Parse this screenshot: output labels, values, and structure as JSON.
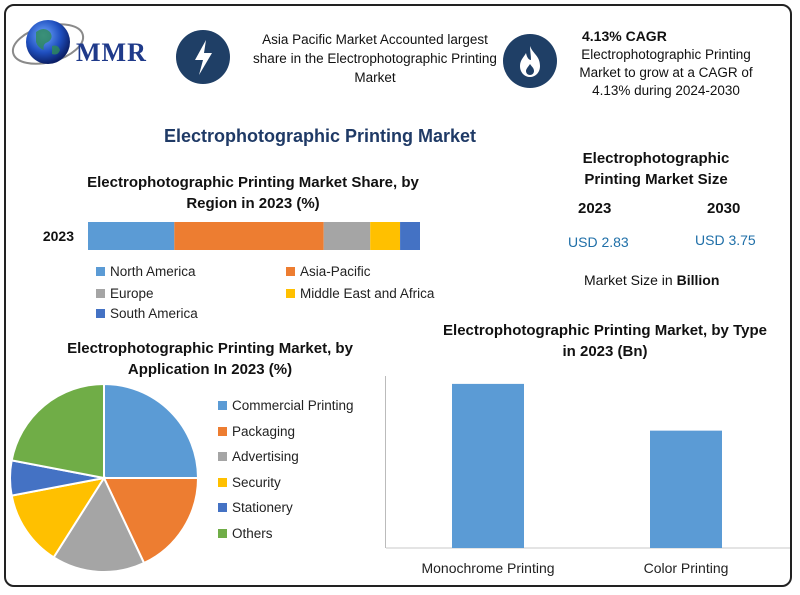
{
  "logo": {
    "text": "MMR"
  },
  "header": {
    "note_left": "Asia Pacific Market Accounted largest share in the Electrophotographic Printing Market",
    "cagr_title": "4.13% CAGR",
    "cagr_text": "Electrophotographic Printing Market to grow at a CAGR of 4.13% during 2024-2030"
  },
  "main_title": "Electrophotographic Printing Market",
  "market_size": {
    "title": "Electrophotographic Printing Market Size",
    "year1": "2023",
    "year2": "2030",
    "value1": "USD 2.83",
    "value2": "USD 3.75",
    "unit_prefix": "Market Size in ",
    "unit_bold": "Billion"
  },
  "chart_data": [
    {
      "type": "bar",
      "orientation": "horizontal-stacked",
      "title": "Electrophotographic Printing Market Share, by Region in 2023 (%)",
      "categories": [
        "2023"
      ],
      "series": [
        {
          "name": "North America",
          "values": [
            26
          ],
          "color": "#5b9bd5"
        },
        {
          "name": "Asia-Pacific",
          "values": [
            45
          ],
          "color": "#ed7d31"
        },
        {
          "name": "Europe",
          "values": [
            14
          ],
          "color": "#a5a5a5"
        },
        {
          "name": "Middle East and Africa",
          "values": [
            9
          ],
          "color": "#ffc000"
        },
        {
          "name": "South America",
          "values": [
            6
          ],
          "color": "#4472c4"
        }
      ],
      "legend": "bottom"
    },
    {
      "type": "pie",
      "title": "Electrophotographic Printing Market, by Application In 2023 (%)",
      "labels": [
        "Commercial Printing",
        "Packaging",
        "Advertising",
        "Security",
        "Stationery",
        "Others"
      ],
      "values": [
        25,
        18,
        16,
        13,
        6,
        22
      ],
      "colors": [
        "#5b9bd5",
        "#ed7d31",
        "#a5a5a5",
        "#ffc000",
        "#4472c4",
        "#70ad47"
      ],
      "legend": "right"
    },
    {
      "type": "bar",
      "title": "Electrophotographic Printing Market, by Type in 2023 (Bn)",
      "categories": [
        "Monochrome Printing",
        "Color Printing"
      ],
      "values": [
        1.65,
        1.18
      ],
      "color": "#5b9bd5",
      "ylim": [
        0,
        1.85
      ]
    }
  ]
}
